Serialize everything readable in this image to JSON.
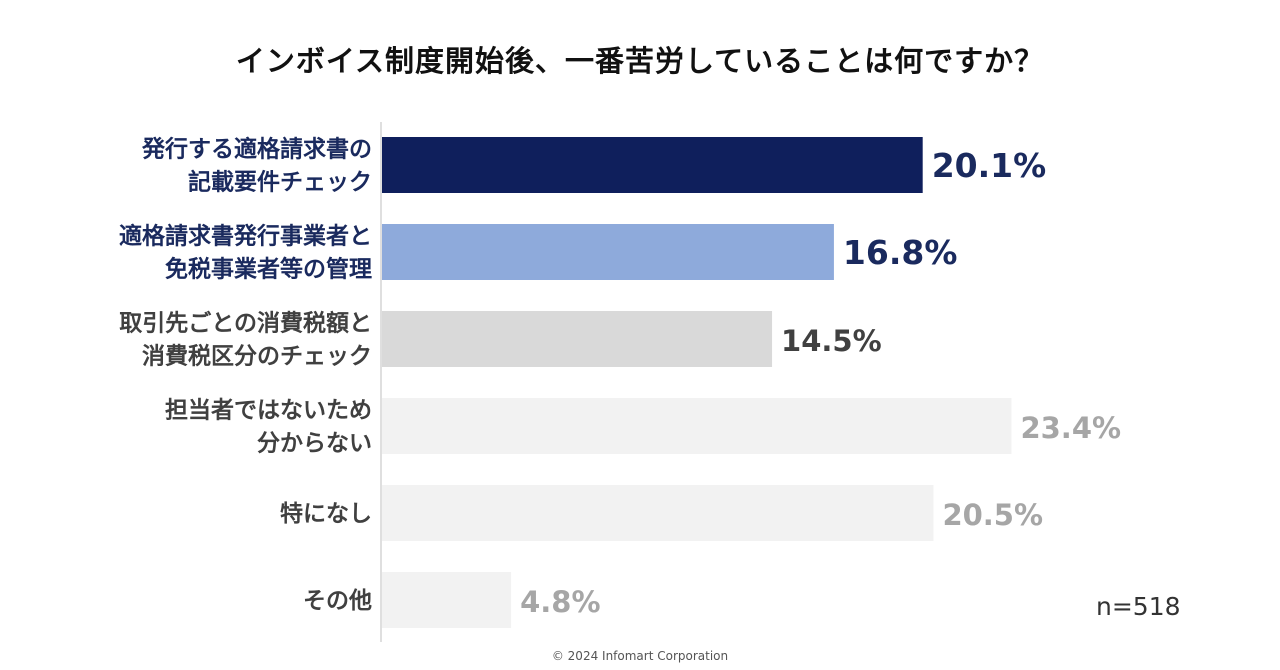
{
  "chart_data": {
    "type": "bar",
    "orientation": "horizontal",
    "title": "インボイス制度開始後、一番苦労していることは何ですか？",
    "categories": [
      [
        "発行する適格請求書の",
        "記載要件チェック"
      ],
      [
        "適格請求書発行事業者と",
        "免税事業者等の管理"
      ],
      [
        "取引先ごとの消費税額と",
        "消費税区分のチェック"
      ],
      [
        "担当者ではないため",
        "分からない"
      ],
      [
        "特になし"
      ],
      [
        "その他"
      ]
    ],
    "values": [
      20.1,
      16.8,
      14.5,
      23.4,
      20.5,
      4.8
    ],
    "value_labels": [
      "20.1%",
      "16.8%",
      "14.5%",
      "23.4%",
      "20.5%",
      "4.8%"
    ],
    "unit": "%",
    "bar_colors": [
      "#0f1f5c",
      "#8eaadb",
      "#d9d9d9",
      "#f2f2f2",
      "#f2f2f2",
      "#f2f2f2"
    ],
    "label_colors": [
      "#1a2a5e",
      "#1a2a5e",
      "#404040",
      "#404040",
      "#404040",
      "#404040"
    ],
    "value_colors": [
      "#1a2a5e",
      "#1a2a5e",
      "#404040",
      "#a6a6a6",
      "#a6a6a6",
      "#a6a6a6"
    ],
    "grid": false,
    "legend": "none"
  },
  "sample_size": "n=518",
  "copyright": "© 2024  Infomart Corporation"
}
